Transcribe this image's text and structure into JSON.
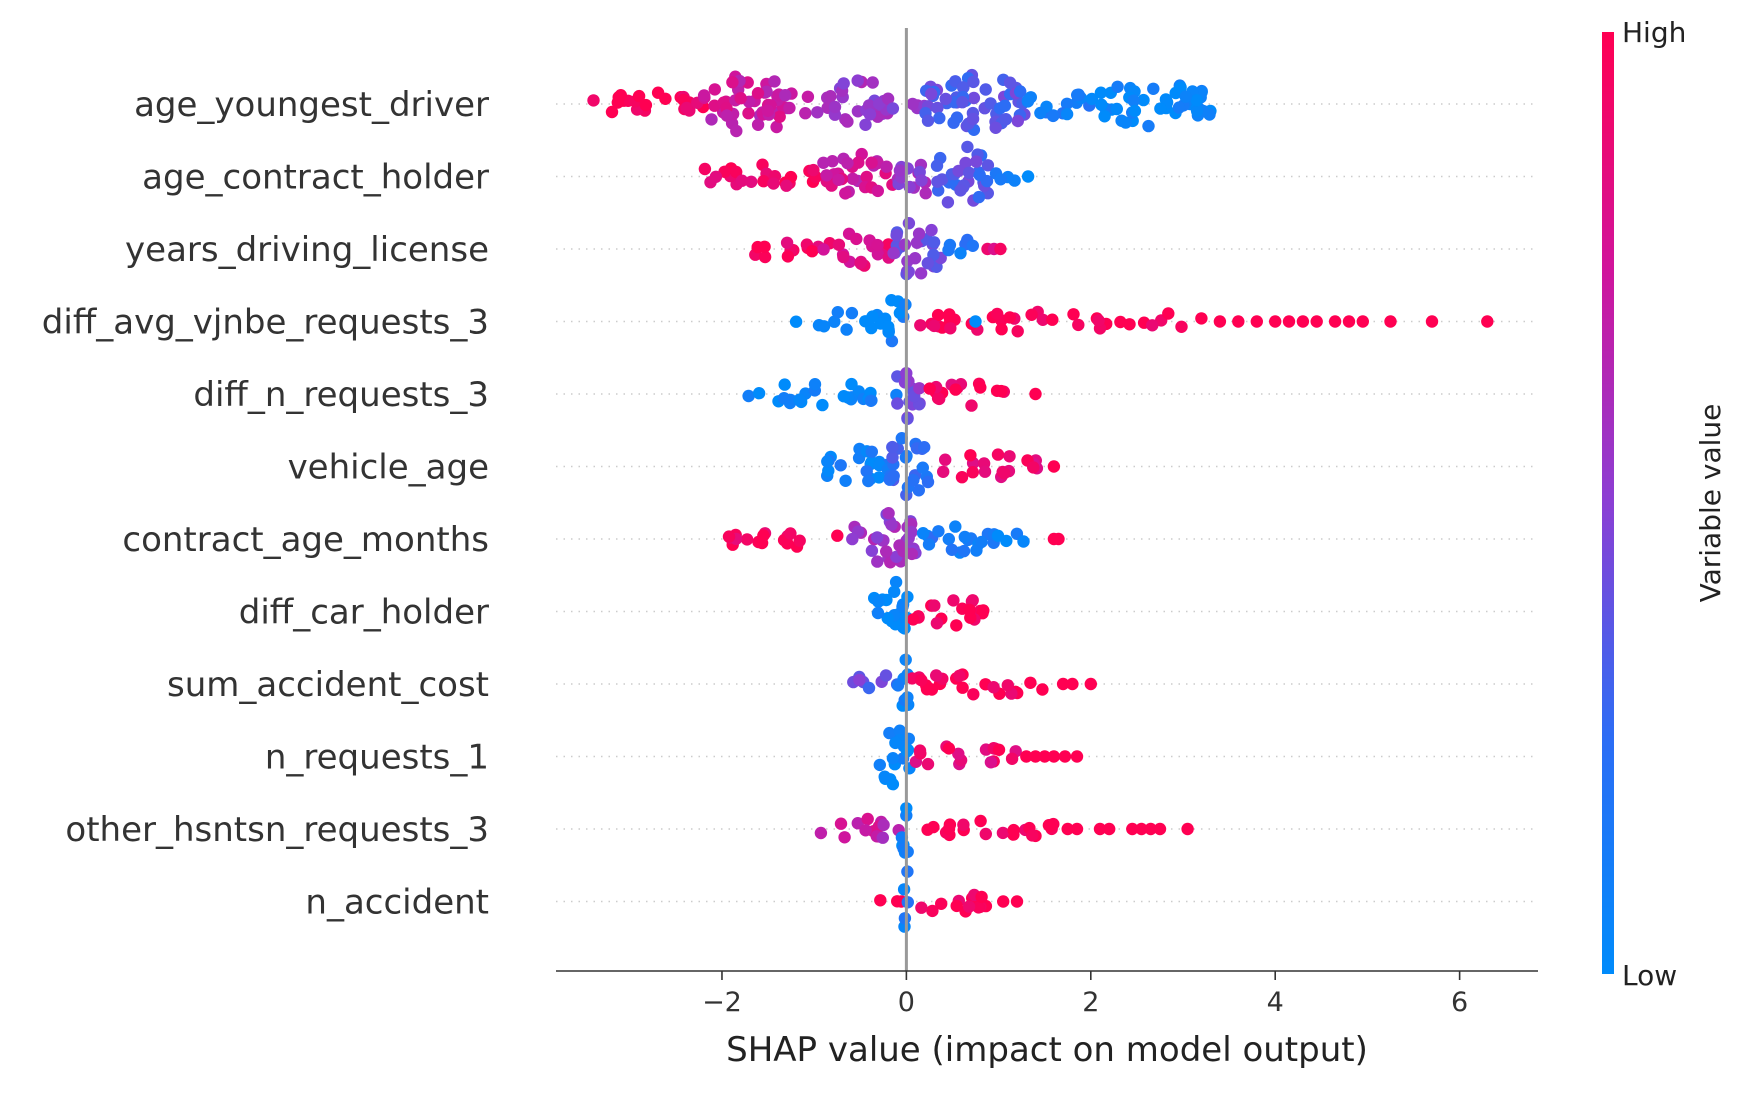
{
  "chart_data": {
    "type": "scatter",
    "subtype": "shap_beeswarm",
    "xlabel": "SHAP value (impact on model output)",
    "xticks": [
      -2,
      0,
      2,
      4,
      6
    ],
    "xtick_labels": [
      "−2",
      "0",
      "2",
      "4",
      "6"
    ],
    "xlim": [
      -3.8,
      6.85
    ],
    "colorbar": {
      "label": "Variable value",
      "high": "High",
      "low": "Low",
      "color_low": "#008bfb",
      "color_high": "#ff0052"
    },
    "features": [
      {
        "name": "age_youngest_driver",
        "x_min": -3.4,
        "x_max": 3.3,
        "segments": [
          {
            "x0": -3.4,
            "x1": -2.2,
            "density": 0.4,
            "value": 0.97
          },
          {
            "x0": -2.2,
            "x1": -1.2,
            "density": 0.95,
            "value": 0.72
          },
          {
            "x0": -1.2,
            "x1": -0.85,
            "density": 0.3,
            "value": 0.62
          },
          {
            "x0": -0.85,
            "x1": -0.2,
            "density": 0.85,
            "value": 0.55
          },
          {
            "x0": -0.2,
            "x1": 0.2,
            "density": 0.3,
            "value": 0.48
          },
          {
            "x0": 0.2,
            "x1": 1.3,
            "density": 1.0,
            "value": 0.36
          },
          {
            "x0": 1.3,
            "x1": 2.0,
            "density": 0.45,
            "value": 0.12
          },
          {
            "x0": 2.0,
            "x1": 3.3,
            "density": 0.7,
            "value": 0.02
          }
        ],
        "outliers": []
      },
      {
        "name": "age_contract_holder",
        "x_min": -2.2,
        "x_max": 1.35,
        "segments": [
          {
            "x0": -2.2,
            "x1": -0.9,
            "density": 0.35,
            "value": 0.95
          },
          {
            "x0": -0.9,
            "x1": -0.1,
            "density": 0.75,
            "value": 0.75
          },
          {
            "x0": -0.1,
            "x1": 0.3,
            "density": 0.7,
            "value": 0.55
          },
          {
            "x0": 0.3,
            "x1": 0.9,
            "density": 1.0,
            "value": 0.35
          },
          {
            "x0": 0.9,
            "x1": 1.2,
            "density": 0.25,
            "value": 0.08
          }
        ],
        "outliers": [
          {
            "x": 1.32,
            "value": 0.0
          }
        ]
      },
      {
        "name": "years_driving_license",
        "x_min": -1.7,
        "x_max": 1.05,
        "segments": [
          {
            "x0": -1.7,
            "x1": -0.9,
            "density": 0.3,
            "value": 0.96
          },
          {
            "x0": -0.9,
            "x1": -0.15,
            "density": 0.55,
            "value": 0.85
          },
          {
            "x0": -0.15,
            "x1": 0.4,
            "density": 1.0,
            "value": 0.45
          },
          {
            "x0": 0.4,
            "x1": 0.8,
            "density": 0.3,
            "value": 0.15
          }
        ],
        "outliers": [
          {
            "x": 0.88,
            "value": 0.9
          },
          {
            "x": 0.95,
            "value": 0.8
          },
          {
            "x": 1.02,
            "value": 0.95
          }
        ]
      },
      {
        "name": "diff_avg_vjnbe_requests_3",
        "x_min": -1.2,
        "x_max": 6.3,
        "segments": [
          {
            "x0": -1.2,
            "x1": -0.2,
            "density": 0.25,
            "value": 0.02
          },
          {
            "x0": -0.2,
            "x1": 0.0,
            "density": 1.0,
            "value": 0.1
          },
          {
            "x0": 0.0,
            "x1": 2.5,
            "density": 0.25,
            "value": 0.99
          },
          {
            "x0": 2.5,
            "x1": 3.2,
            "density": 0.18,
            "value": 0.99
          }
        ],
        "outliers": [
          {
            "x": 3.4,
            "value": 1.0
          },
          {
            "x": 3.6,
            "value": 1.0
          },
          {
            "x": 3.8,
            "value": 1.0
          },
          {
            "x": 4.0,
            "value": 1.0
          },
          {
            "x": 4.15,
            "value": 1.0
          },
          {
            "x": 4.3,
            "value": 1.0
          },
          {
            "x": 4.45,
            "value": 1.0
          },
          {
            "x": 4.65,
            "value": 1.0
          },
          {
            "x": 4.8,
            "value": 1.0
          },
          {
            "x": 4.95,
            "value": 1.0
          },
          {
            "x": 5.25,
            "value": 1.0
          },
          {
            "x": 5.7,
            "value": 1.0
          },
          {
            "x": 6.3,
            "value": 1.0
          },
          {
            "x": 0.75,
            "value": 0.0
          }
        ]
      },
      {
        "name": "diff_n_requests_3",
        "x_min": -1.75,
        "x_max": 1.4,
        "segments": [
          {
            "x0": -1.75,
            "x1": -0.1,
            "density": 0.3,
            "value": 0.04
          },
          {
            "x0": -0.1,
            "x1": 0.2,
            "density": 1.0,
            "value": 0.45
          },
          {
            "x0": 0.2,
            "x1": 1.1,
            "density": 0.35,
            "value": 0.95
          }
        ],
        "outliers": [
          {
            "x": 1.4,
            "value": 1.0
          }
        ]
      },
      {
        "name": "vehicle_age",
        "x_min": -0.95,
        "x_max": 1.6,
        "segments": [
          {
            "x0": -0.95,
            "x1": -0.2,
            "density": 0.55,
            "value": 0.1
          },
          {
            "x0": -0.2,
            "x1": 0.25,
            "density": 1.0,
            "value": 0.25
          },
          {
            "x0": 0.25,
            "x1": 1.45,
            "density": 0.35,
            "value": 0.9
          }
        ],
        "outliers": [
          {
            "x": 1.6,
            "value": 1.0
          }
        ]
      },
      {
        "name": "contract_age_months",
        "x_min": -1.95,
        "x_max": 1.65,
        "segments": [
          {
            "x0": -1.95,
            "x1": -0.6,
            "density": 0.25,
            "value": 0.97
          },
          {
            "x0": -0.6,
            "x1": 0.15,
            "density": 0.85,
            "value": 0.55
          },
          {
            "x0": 0.15,
            "x1": 0.9,
            "density": 0.45,
            "value": 0.15
          },
          {
            "x0": 0.9,
            "x1": 1.45,
            "density": 0.22,
            "value": 0.05
          }
        ],
        "outliers": [
          {
            "x": 1.6,
            "value": 1.0
          },
          {
            "x": 1.65,
            "value": 1.0
          }
        ]
      },
      {
        "name": "diff_car_holder",
        "x_min": -0.35,
        "x_max": 0.95,
        "segments": [
          {
            "x0": -0.35,
            "x1": 0.05,
            "density": 1.0,
            "value": 0.02
          },
          {
            "x0": 0.05,
            "x1": 0.95,
            "density": 0.4,
            "value": 0.99
          }
        ],
        "outliers": []
      },
      {
        "name": "sum_accident_cost",
        "x_min": -0.6,
        "x_max": 2.0,
        "segments": [
          {
            "x0": -0.6,
            "x1": -0.1,
            "density": 0.3,
            "value": 0.4
          },
          {
            "x0": -0.1,
            "x1": 0.05,
            "density": 1.0,
            "value": 0.03
          },
          {
            "x0": 0.05,
            "x1": 1.55,
            "density": 0.3,
            "value": 0.98
          }
        ],
        "outliers": [
          {
            "x": 1.7,
            "value": 1.0
          },
          {
            "x": 1.8,
            "value": 1.0
          },
          {
            "x": 2.0,
            "value": 1.0
          }
        ]
      },
      {
        "name": "n_requests_1",
        "x_min": -0.3,
        "x_max": 1.85,
        "segments": [
          {
            "x0": -0.3,
            "x1": 0.05,
            "density": 1.0,
            "value": 0.03
          },
          {
            "x0": 0.05,
            "x1": 1.2,
            "density": 0.3,
            "value": 0.9
          }
        ],
        "outliers": [
          {
            "x": 1.3,
            "value": 1.0
          },
          {
            "x": 1.4,
            "value": 1.0
          },
          {
            "x": 1.5,
            "value": 1.0
          },
          {
            "x": 1.6,
            "value": 1.0
          },
          {
            "x": 1.72,
            "value": 1.0
          },
          {
            "x": 1.85,
            "value": 1.0
          }
        ]
      },
      {
        "name": "other_hsntsn_requests_3",
        "x_min": -1.0,
        "x_max": 3.05,
        "segments": [
          {
            "x0": -1.0,
            "x1": -0.05,
            "density": 0.3,
            "value": 0.7
          },
          {
            "x0": -0.05,
            "x1": 0.1,
            "density": 1.0,
            "value": 0.03
          },
          {
            "x0": 0.1,
            "x1": 1.6,
            "density": 0.28,
            "value": 0.99
          }
        ],
        "outliers": [
          {
            "x": 1.75,
            "value": 1.0
          },
          {
            "x": 1.85,
            "value": 1.0
          },
          {
            "x": 2.1,
            "value": 1.0
          },
          {
            "x": 2.2,
            "value": 1.0
          },
          {
            "x": 2.45,
            "value": 1.0
          },
          {
            "x": 2.55,
            "value": 1.0
          },
          {
            "x": 2.65,
            "value": 1.0
          },
          {
            "x": 2.75,
            "value": 1.0
          },
          {
            "x": 3.05,
            "value": 1.0
          }
        ]
      },
      {
        "name": "n_accident",
        "x_min": -0.3,
        "x_max": 1.2,
        "segments": [
          {
            "x0": -0.3,
            "x1": -0.05,
            "density": 0.25,
            "value": 0.98
          },
          {
            "x0": -0.05,
            "x1": 0.05,
            "density": 1.0,
            "value": 0.1
          },
          {
            "x0": 0.05,
            "x1": 0.9,
            "density": 0.3,
            "value": 0.99
          }
        ],
        "outliers": [
          {
            "x": 1.05,
            "value": 1.0
          },
          {
            "x": 1.2,
            "value": 1.0
          }
        ]
      }
    ]
  }
}
